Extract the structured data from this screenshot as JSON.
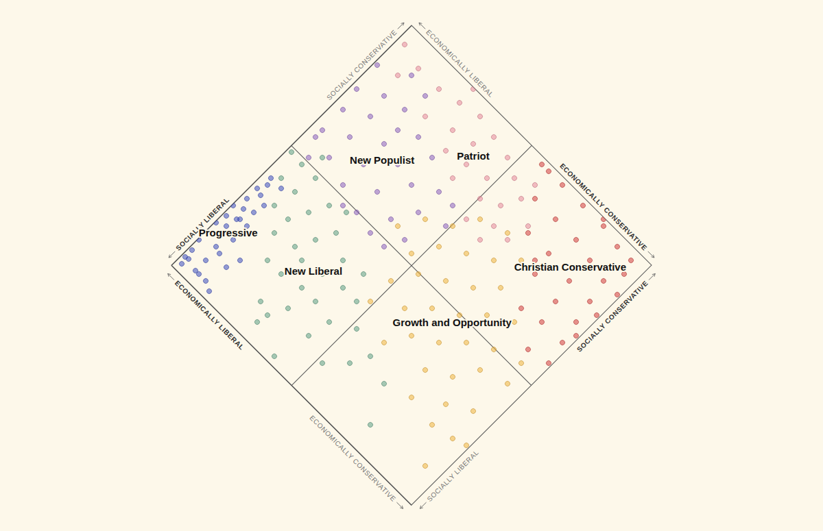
{
  "chart_data": {
    "type": "scatter",
    "xlabel": [
      "ECONOMICALLY LIBERAL",
      "ECONOMICALLY CONSERVATIVE"
    ],
    "ylabel": [
      "SOCIALLY LIBERAL",
      "SOCIALLY CONSERVATIVE"
    ],
    "xlim": [
      -350,
      350
    ],
    "ylim": [
      -350,
      350
    ],
    "xticks": [
      0
    ],
    "yticks": [
      0
    ],
    "grid": true,
    "tick_labels": false,
    "series": [
      {
        "name": "Progressive",
        "color": "#3b4cc0",
        "x": [
          -347,
          -337,
          -322,
          -307,
          -317,
          -327,
          -337,
          -347,
          -342,
          -342,
          -337,
          -307,
          -297,
          -297,
          -297,
          -302,
          -327,
          -337,
          -327,
          -312,
          -297,
          -277,
          -307,
          -267,
          -322,
          -282,
          -347,
          -332,
          -334,
          -342,
          -257,
          -257,
          -302
        ],
        "values": [
          -173,
          -143,
          -118,
          -153,
          -183,
          -213,
          -243,
          -273,
          -298,
          -318,
          -333,
          -293,
          -263,
          -223,
          -183,
          -128,
          -93,
          -113,
          -163,
          -258,
          -323,
          -323,
          -323,
          -273,
          -188,
          -188,
          -223,
          -78,
          -316,
          -198,
          -243,
          -333,
          -78
        ]
      },
      {
        "name": "New Liberal",
        "color": "#5b9e83",
        "x": [
          -340,
          -307,
          -317,
          -277,
          -267,
          -207,
          -227,
          -247,
          -247,
          -217,
          -177,
          -197,
          -177,
          -157,
          -107,
          -117,
          -127,
          -117,
          -137,
          -167,
          -87,
          -67,
          -27,
          -37,
          -47,
          13,
          73,
          53,
          13,
          -67,
          173,
          133,
          -172,
          -287,
          -287,
          -142,
          -167,
          -57
        ],
        "values": [
          -10,
          -13,
          -63,
          -63,
          -13,
          -33,
          -73,
          -113,
          -153,
          -203,
          -203,
          -143,
          -103,
          -63,
          -93,
          -143,
          -193,
          -243,
          -283,
          -273,
          -193,
          -133,
          -133,
          -203,
          -253,
          -173,
          -193,
          -233,
          -273,
          -333,
          -293,
          -213,
          -18,
          27,
          -113,
          -308,
          -153,
          -83
        ]
      },
      {
        "name": "New Populist",
        "color": "#8b5fbf",
        "x": [
          -342,
          -337,
          -287,
          -327,
          -277,
          -237,
          -327,
          -277,
          -217,
          -177,
          -277,
          -217,
          -167,
          -127,
          -217,
          -157,
          -117,
          -67,
          -157,
          -97,
          -67,
          -107,
          -47,
          -327,
          -227,
          -277,
          -27,
          -187,
          -307,
          -217,
          -7,
          -67
        ],
        "values": [
          242,
          177,
          207,
          127,
          157,
          217,
          67,
          97,
          137,
          197,
          37,
          77,
          127,
          187,
          17,
          57,
          117,
          147,
          -3,
          37,
          87,
          -13,
          27,
          47,
          267,
          277,
          147,
          -13,
          7,
          177,
          107,
          -13
        ]
      },
      {
        "name": "Patriot",
        "color": "#e8899b",
        "x": [
          -332,
          -297,
          -277,
          -217,
          -167,
          -117,
          -137,
          -87,
          -67,
          -17,
          -67,
          -17,
          23,
          3,
          43,
          63,
          13,
          63,
          -117,
          -197,
          113,
          103,
          63,
          -67,
          -167,
          63
        ],
        "values": [
          312,
          257,
          297,
          297,
          307,
          317,
          257,
          267,
          307,
          297,
          227,
          237,
          277,
          197,
          217,
          257,
          147,
          177,
          217,
          237,
          227,
          177,
          137,
          187,
          347,
          297
        ]
      },
      {
        "name": "Growth and Opportunity",
        "color": "#f0b43c",
        "x": [
          -77,
          -47,
          3,
          33,
          93,
          -17,
          13,
          63,
          113,
          153,
          -7,
          23,
          73,
          123,
          163,
          53,
          93,
          143,
          183,
          233,
          103,
          153,
          193,
          243,
          173,
          223,
          253,
          193,
          253,
          303,
          263,
          313,
          343,
          313,
          313,
          -7,
          303,
          73
        ],
        "values": [
          37,
          87,
          117,
          167,
          187,
          17,
          67,
          97,
          127,
          167,
          -53,
          -3,
          27,
          57,
          97,
          -73,
          -33,
          -3,
          37,
          67,
          -103,
          -73,
          -33,
          -3,
          -133,
          -103,
          -53,
          -193,
          -153,
          -123,
          -203,
          -193,
          -183,
          -273,
          -33,
          -113,
          17,
          -153
        ]
      },
      {
        "name": "Christian Conservative",
        "color": "#d33a3a",
        "x": [
          43,
          103,
          83,
          163,
          143,
          223,
          123,
          203,
          273,
          183,
          253,
          313,
          193,
          253,
          303,
          263,
          313,
          343,
          273,
          323,
          343,
          333,
          343,
          343,
          173,
          223,
          63,
          213,
          323,
          293
        ],
        "values": [
          337,
          337,
          277,
          337,
          277,
          337,
          217,
          277,
          327,
          217,
          267,
          327,
          167,
          207,
          257,
          157,
          207,
          257,
          107,
          157,
          197,
          107,
          137,
          57,
          187,
          97,
          337,
          347,
          297,
          47
        ]
      }
    ]
  }
}
